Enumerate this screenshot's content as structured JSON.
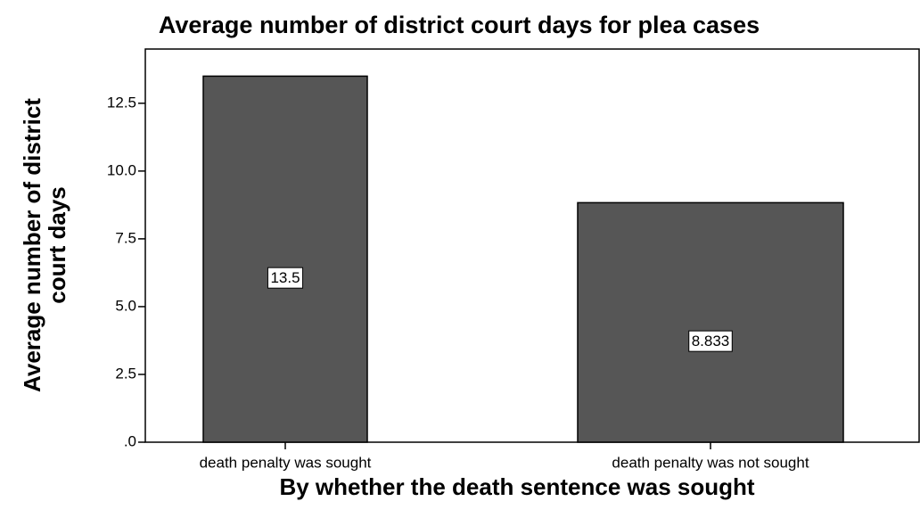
{
  "chart_data": {
    "type": "bar",
    "title": "Average number of district court days for plea cases",
    "xlabel": "By whether the death sentence was sought",
    "ylabel": [
      "Average number of district",
      "court days"
    ],
    "categories": [
      "death penalty was sought",
      "death penalty was not sought"
    ],
    "values": [
      13.5,
      8.833
    ],
    "color": "#565656",
    "ylim": [
      0,
      14.5
    ],
    "yticks": [
      {
        "value": 0,
        "label": ".0"
      },
      2.5,
      {
        "value": 5,
        "label": "5.0"
      },
      7.5,
      {
        "value": 10,
        "label": "10.0"
      },
      12.5
    ]
  }
}
